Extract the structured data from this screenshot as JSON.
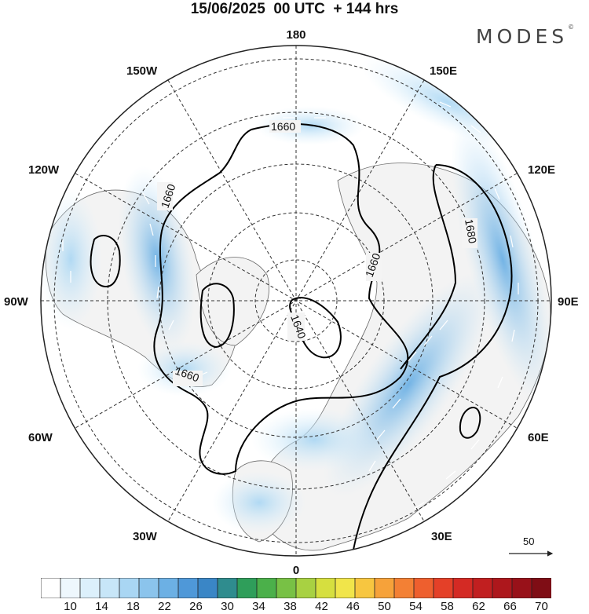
{
  "title": "15/06/2025  00 UTC  + 144 hrs",
  "brand": "MODES",
  "brand_mark": "©",
  "map": {
    "projection": "north-polar-stereographic",
    "center_meridian_bottom": "0",
    "longitude_labels": {
      "top": "180",
      "bottom": "0",
      "left": "90W",
      "right": "90E",
      "upper_left": "150W",
      "upper_right": "150E",
      "left_upper": "120W",
      "right_upper": "120E",
      "left_lower": "60W",
      "right_lower": "60E",
      "lower_left": "30W",
      "lower_right": "30E"
    },
    "contour_labels": [
      "1660",
      "1660",
      "1660",
      "1660",
      "1640",
      "1680"
    ],
    "colors": {
      "land": "#f4f4f4",
      "coastline": "#555555",
      "contour": "#000000",
      "grid": "#333333"
    }
  },
  "vector_reference": {
    "label": "50"
  },
  "colorbar": {
    "ticks": [
      "10",
      "14",
      "18",
      "22",
      "26",
      "30",
      "34",
      "38",
      "42",
      "46",
      "50",
      "54",
      "58",
      "62",
      "66",
      "70"
    ],
    "colors": [
      "#ffffff",
      "#eef7fd",
      "#dcf0fb",
      "#c7e6f8",
      "#a9d6f3",
      "#8bc4ec",
      "#6cb0e4",
      "#4f98d8",
      "#3a86c6",
      "#2f8c8e",
      "#2f9e5a",
      "#4bb04a",
      "#78c145",
      "#a8d142",
      "#d6df3f",
      "#f1e54a",
      "#f7c640",
      "#f6a23a",
      "#f38034",
      "#ee5f2e",
      "#e44028",
      "#d42a24",
      "#c11f20",
      "#ad171c",
      "#981119",
      "#7f0d15"
    ]
  }
}
